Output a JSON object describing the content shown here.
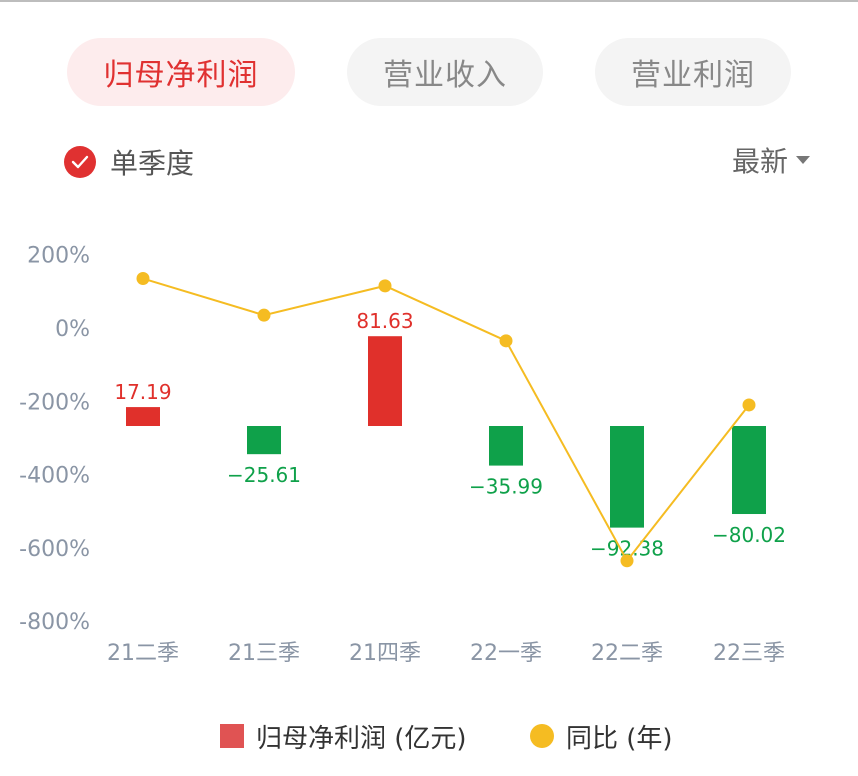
{
  "tabs": [
    {
      "label": "归母净利润",
      "active": true
    },
    {
      "label": "营业收入",
      "active": false
    },
    {
      "label": "营业利润",
      "active": false
    }
  ],
  "toggle": {
    "label": "单季度",
    "checked": true,
    "icon": "check-circle-icon"
  },
  "sort": {
    "label": "最新",
    "icon": "caret-down-icon"
  },
  "legend": {
    "bar_label": "归母净利润 (亿元)",
    "line_label": "同比 (年)"
  },
  "colors": {
    "positive_bar": "#e0302b",
    "negative_bar": "#0fa14a",
    "line": "#f5bc22",
    "accent": "#e03131"
  },
  "chart_data": {
    "type": "bar",
    "categories": [
      "21二季",
      "21三季",
      "21四季",
      "22一季",
      "22二季",
      "22三季"
    ],
    "y_ticks": [
      "200%",
      "0%",
      "-200%",
      "-400%",
      "-600%",
      "-800%"
    ],
    "ylim_right_axis_percent": [
      -800,
      200
    ],
    "series": [
      {
        "name": "归母净利润 (亿元)",
        "type": "bar",
        "values": [
          17.19,
          -25.61,
          81.63,
          -35.99,
          -92.38,
          -80.02
        ],
        "value_labels": [
          "17.19",
          "−25.61",
          "81.63",
          "−35.99",
          "−92.38",
          "−80.02"
        ]
      },
      {
        "name": "同比 (年)",
        "type": "line",
        "values_percent": [
          135,
          35,
          115,
          -35,
          -635,
          -210
        ]
      }
    ],
    "grid": false,
    "legend_position": "bottom-center"
  }
}
